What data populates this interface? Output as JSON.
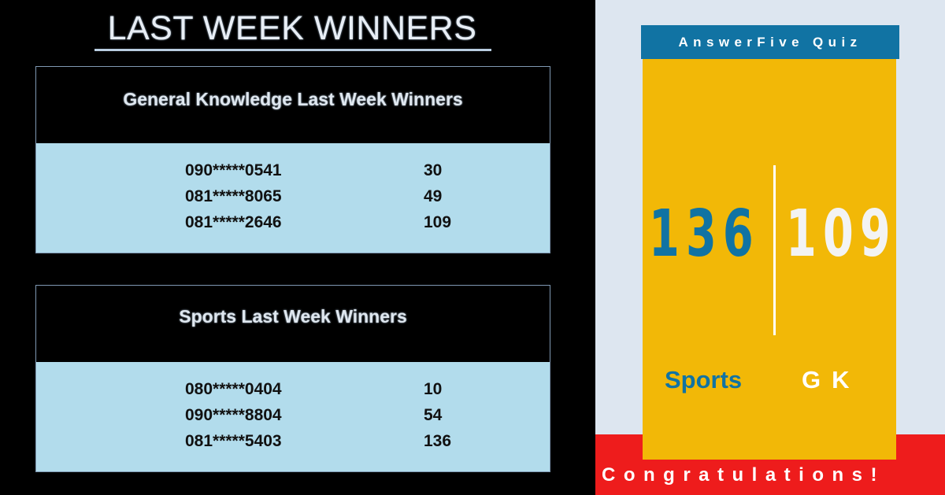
{
  "main_title": "LAST WEEK WINNERS",
  "general_knowledge": {
    "title": "General Knowledge Last Week Winners",
    "winners": [
      {
        "number": "090*****0541",
        "score": "30"
      },
      {
        "number": "081*****8065",
        "score": "49"
      },
      {
        "number": "081*****2646",
        "score": "109"
      }
    ]
  },
  "sports": {
    "title": "Sports Last Week Winners",
    "winners": [
      {
        "number": "080*****0404",
        "score": "10"
      },
      {
        "number": "090*****8804",
        "score": "54"
      },
      {
        "number": "081*****5403",
        "score": "136"
      }
    ]
  },
  "card": {
    "brand": "AnswerFive Quiz",
    "sports_count": "136",
    "gk_count": "109",
    "sports_label": "Sports",
    "gk_label": "GK",
    "congrats": "Congratulations!"
  },
  "colors": {
    "accent_blue": "#1173a3",
    "card_yellow": "#f2b807",
    "band_red": "#ee1c1c",
    "panel_light_blue": "#b2dcec"
  }
}
